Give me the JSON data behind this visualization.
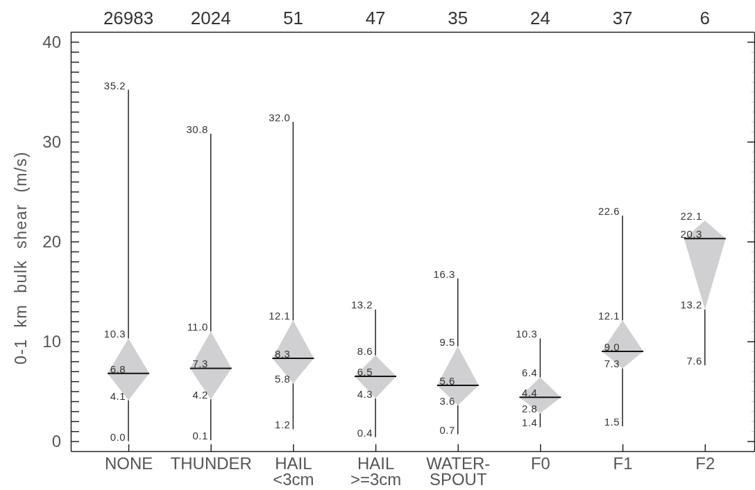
{
  "chart_data": {
    "type": "box",
    "ylabel": "0-1 km bulk shear (m/s)",
    "categories": [
      "NONE",
      "THUNDER",
      "HAIL\n<3cm",
      "HAIL\n>=3cm",
      "WATER-\nSPOUT",
      "F0",
      "F1",
      "F2"
    ],
    "series": [
      {
        "color": "#d0d0d2",
        "boxes": [
          {
            "low": 0.0,
            "q1": 4.1,
            "median": 6.8,
            "q3": 10.3,
            "high": 35.2
          },
          {
            "low": 0.1,
            "q1": 4.2,
            "median": 7.3,
            "q3": 11.0,
            "high": 30.8
          },
          {
            "low": 1.2,
            "q1": 5.8,
            "median": 8.3,
            "q3": 12.1,
            "high": 32.0
          },
          {
            "low": 0.4,
            "q1": 4.3,
            "median": 6.5,
            "q3": 8.6,
            "high": 13.2
          },
          {
            "low": 0.7,
            "q1": 3.6,
            "median": 5.6,
            "q3": 9.5,
            "high": 16.3
          },
          {
            "low": 1.4,
            "q1": 2.8,
            "median": 4.4,
            "q3": 6.4,
            "high": 10.3
          },
          {
            "low": 1.5,
            "q1": 7.3,
            "median": 9.0,
            "q3": 12.1,
            "high": 22.6
          },
          {
            "low": 7.6,
            "q1": 13.2,
            "median": 20.3,
            "q3": 22.1,
            "high": 22.1
          }
        ]
      }
    ],
    "annotations": [
      "26983",
      "2024",
      "51",
      "47",
      "35",
      "24",
      "37",
      "6",
      {
        "text": "35.2",
        "x": "NONE",
        "y": 35.2
      },
      {
        "text": "10.3",
        "x": "NONE",
        "y": 10.3
      },
      {
        "text": "6.8",
        "x": "NONE",
        "y": 6.8
      },
      {
        "text": "4.1",
        "x": "NONE",
        "y": 4.1
      },
      {
        "text": "0.0",
        "x": "NONE",
        "y": 0
      },
      {
        "text": "30.8",
        "x": "THUNDER",
        "y": 30.8
      },
      {
        "text": "11.0",
        "x": "THUNDER",
        "y": 11.0
      },
      {
        "text": "7.3",
        "x": "THUNDER",
        "y": 7.3
      },
      {
        "text": "4.2",
        "x": "THUNDER",
        "y": 4.2
      },
      {
        "text": "0.1",
        "x": "THUNDER",
        "y": 0.1
      },
      {
        "text": "32.0",
        "x": "HAIL\n<3cm",
        "y": 32.0
      },
      {
        "text": "12.1",
        "x": "HAIL\n<3cm",
        "y": 12.1
      },
      {
        "text": "8.3",
        "x": "HAIL\n<3cm",
        "y": 8.3
      },
      {
        "text": "5.8",
        "x": "HAIL\n<3cm",
        "y": 5.8
      },
      {
        "text": "1.2",
        "x": "HAIL\n<3cm",
        "y": 1.2
      },
      {
        "text": "13.2",
        "x": "HAIL\n>=3cm",
        "y": 13.2
      },
      {
        "text": "8.6",
        "x": "HAIL\n>=3cm",
        "y": 8.6
      },
      {
        "text": "6.5",
        "x": "HAIL\n>=3cm",
        "y": 6.5
      },
      {
        "text": "4.3",
        "x": "HAIL\n>=3cm",
        "y": 4.3
      },
      {
        "text": "0.4",
        "x": "HAIL\n>=3cm",
        "y": 0.4
      },
      {
        "text": "16.3",
        "x": "WATER-\nSPOUT",
        "y": 16.3
      },
      {
        "text": "9.5",
        "x": "WATER-\nSPOUT",
        "y": 9.5
      },
      {
        "text": "5.6",
        "x": "WATER-\nSPOUT",
        "y": 5.6
      },
      {
        "text": "3.6",
        "x": "WATER-\nSPOUT",
        "y": 3.6
      },
      {
        "text": "0.7",
        "x": "WATER-\nSPOUT",
        "y": 0.7
      },
      {
        "text": "10.3",
        "x": "F0",
        "y": 10.3
      },
      {
        "text": "6.4",
        "x": "F0",
        "y": 6.4
      },
      {
        "text": "4.4",
        "x": "F0",
        "y": 4.4
      },
      {
        "text": "2.8",
        "x": "F0",
        "y": 2.8
      },
      {
        "text": "1.4",
        "x": "F0",
        "y": 1.4
      },
      {
        "text": "22.6",
        "x": "F1",
        "y": 22.6
      },
      {
        "text": "12.1",
        "x": "F1",
        "y": 12.1
      },
      {
        "text": "9.0",
        "x": "F1",
        "y": 9.0
      },
      {
        "text": "7.3",
        "x": "F1",
        "y": 7.3
      },
      {
        "text": "1.5",
        "x": "F1",
        "y": 1.5
      },
      {
        "text": "22.1",
        "x": "F2",
        "y": 22.1
      },
      {
        "text": "20.3",
        "x": "F2",
        "y": 20.3
      },
      {
        "text": "13.2",
        "x": "F2",
        "y": 13.2
      },
      {
        "text": "7.6",
        "x": "F2",
        "y": 7.6
      }
    ],
    "ylim": [
      -1,
      41
    ],
    "yticks": [
      0,
      {
        "value": 1,
        "label": null
      },
      {
        "value": 2,
        "label": null
      },
      {
        "value": 3,
        "label": null
      },
      {
        "value": 4,
        "label": null
      },
      {
        "value": 5,
        "label": null
      },
      {
        "value": 6,
        "label": null
      },
      {
        "value": 7,
        "label": null
      },
      {
        "value": 8,
        "label": null
      },
      {
        "value": 9,
        "label": null
      },
      10,
      {
        "value": 11,
        "label": null
      },
      {
        "value": 12,
        "label": null
      },
      {
        "value": 13,
        "label": null
      },
      {
        "value": 14,
        "label": null
      },
      {
        "value": 15,
        "label": null
      },
      {
        "value": 16,
        "label": null
      },
      {
        "value": 17,
        "label": null
      },
      {
        "value": 18,
        "label": null
      },
      {
        "value": 19,
        "label": null
      },
      20,
      {
        "value": 21,
        "label": null
      },
      {
        "value": 22,
        "label": null
      },
      {
        "value": 23,
        "label": null
      },
      {
        "value": 24,
        "label": null
      },
      {
        "value": 25,
        "label": null
      },
      {
        "value": 26,
        "label": null
      },
      {
        "value": 27,
        "label": null
      },
      {
        "value": 28,
        "label": null
      },
      {
        "value": 29,
        "label": null
      },
      30,
      {
        "value": 31,
        "label": null
      },
      {
        "value": 32,
        "label": null
      },
      {
        "value": 33,
        "label": null
      },
      {
        "value": 34,
        "label": null
      },
      {
        "value": 35,
        "label": null
      },
      {
        "value": 36,
        "label": null
      },
      {
        "value": 37,
        "label": null
      },
      {
        "value": 38,
        "label": null
      },
      {
        "value": 39,
        "label": null
      },
      40
    ]
  }
}
